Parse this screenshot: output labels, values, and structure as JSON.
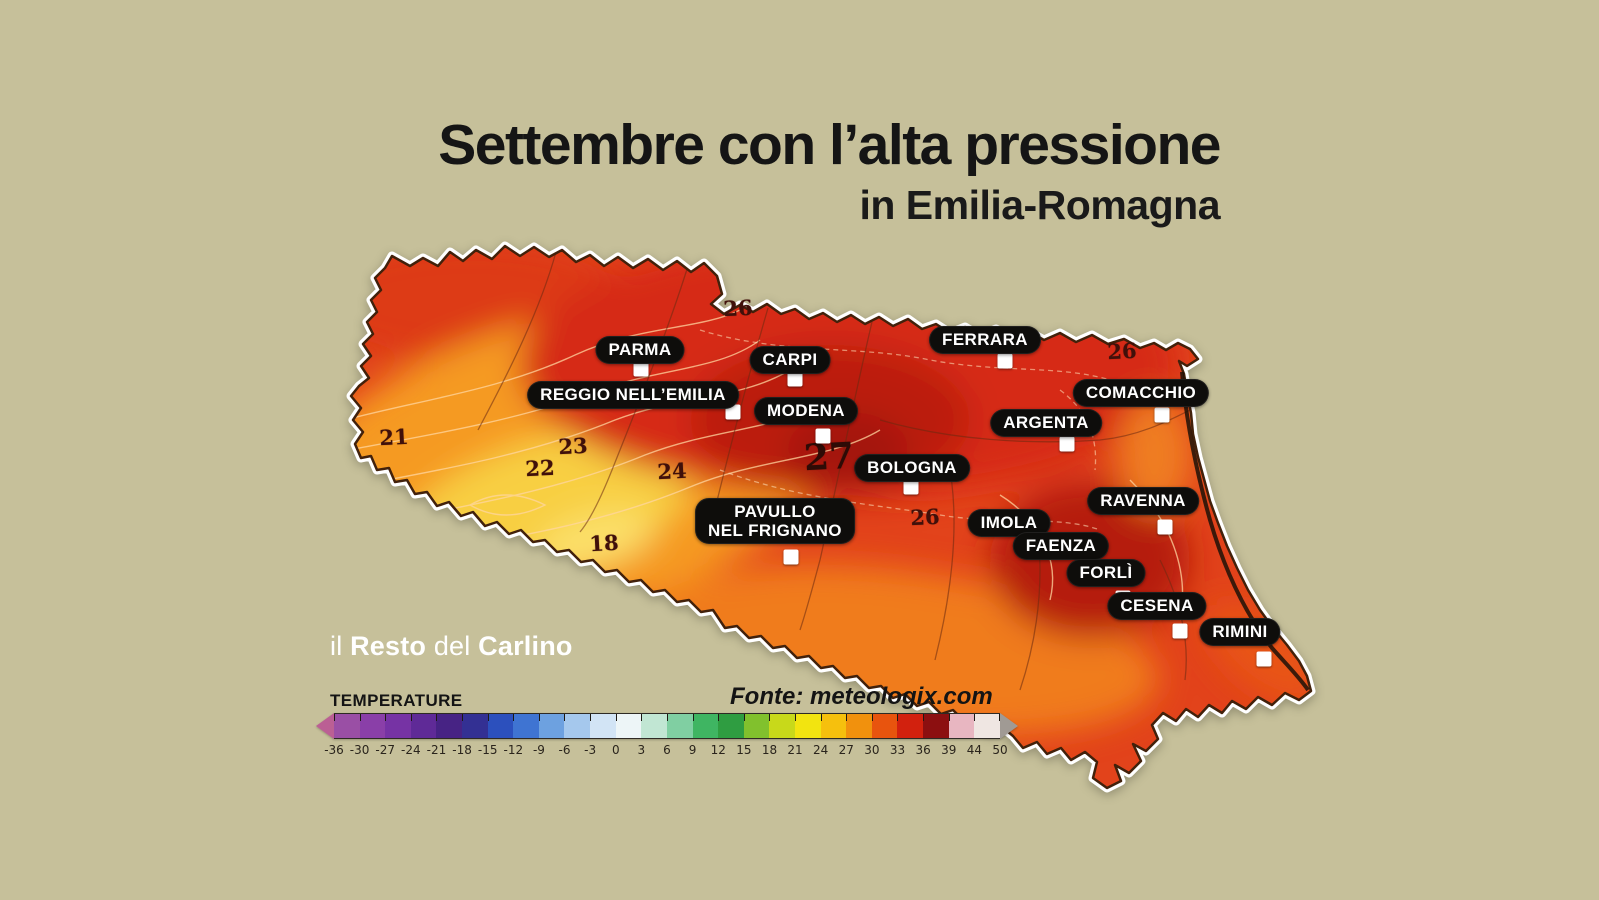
{
  "colors": {
    "background": "#c6c09a",
    "title_text": "#151515",
    "pill_background": "#0e0d0b",
    "pill_text": "#ffffff",
    "map_base": "#e2431b",
    "map_outline_white": "#ffffff",
    "map_inner_edge": "#42210b",
    "coastline": "#1d1208",
    "contour_label": "#40100a"
  },
  "title": "Settembre con l’alta pressione",
  "subtitle": "in Emilia-Romagna",
  "logo": {
    "part1": "il",
    "part2": "Resto",
    "part3": "del",
    "part4": "Carlino"
  },
  "source": "Fonte: meteologix.com",
  "legend": {
    "label": "TEMPERATURE",
    "ticks": [
      "-36",
      "-30",
      "-27",
      "-24",
      "-21",
      "-18",
      "-15",
      "-12",
      "-9",
      "-6",
      "-3",
      "0",
      "3",
      "6",
      "9",
      "12",
      "15",
      "18",
      "21",
      "24",
      "27",
      "30",
      "33",
      "36",
      "39",
      "44",
      "50"
    ],
    "segment_colors": [
      "#9a4fa5",
      "#8a3fa8",
      "#7633a4",
      "#5f2a97",
      "#472384",
      "#333093",
      "#2c50bd",
      "#3f74d2",
      "#6da1e0",
      "#a5c8ed",
      "#d2e4f5",
      "#edf5f7",
      "#c1e6d3",
      "#80cfa2",
      "#3fb562",
      "#2f9d41",
      "#81c12d",
      "#c8d91a",
      "#f2e410",
      "#f6c00d",
      "#f1910d",
      "#e8540e",
      "#d2210e",
      "#8c0f10",
      "#e8b6c1",
      "#efe6e2"
    ],
    "left_arrow_color": "#bb5f94",
    "right_arrow_color": "#a09a94"
  },
  "map": {
    "region_name": "Emilia-Romagna",
    "cities": [
      {
        "name": "PARMA"
      },
      {
        "name": "REGGIO NELL’EMILIA"
      },
      {
        "name": "CARPI"
      },
      {
        "name": "MODENA"
      },
      {
        "name": "BOLOGNA"
      },
      {
        "name": "FERRARA"
      },
      {
        "name": "ARGENTA"
      },
      {
        "name": "COMACCHIO"
      },
      {
        "name": "RAVENNA"
      },
      {
        "name": "IMOLA"
      },
      {
        "name": "FAENZA"
      },
      {
        "name": "FORLÌ"
      },
      {
        "name": "CESENA"
      },
      {
        "name": "RIMINI"
      },
      {
        "name": "PAVULLO\nNEL FRIGNANO"
      }
    ],
    "contour_labels": [
      {
        "value": "26"
      },
      {
        "value": "21"
      },
      {
        "value": "23"
      },
      {
        "value": "22"
      },
      {
        "value": "24"
      },
      {
        "value": "18"
      },
      {
        "value": "27"
      },
      {
        "value": "26"
      },
      {
        "value": "26"
      }
    ]
  }
}
